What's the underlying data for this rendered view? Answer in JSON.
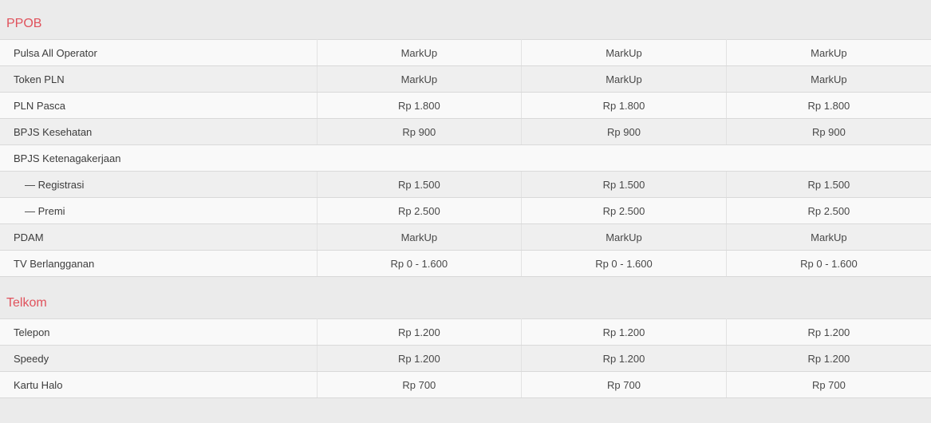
{
  "theme": {
    "page_bg": "#ebebeb",
    "row_light": "#f9f9f9",
    "row_dark": "#efefef",
    "border_h": "#d9d9d9",
    "border_v": "#e2e2e2",
    "accent": "#e0525c",
    "label_text": "#3c3c3c",
    "value_text": "#484848"
  },
  "sections": [
    {
      "title": "PPOB",
      "rows": [
        {
          "label": "Pulsa All Operator",
          "indent": false,
          "full_span": false,
          "values": [
            "MarkUp",
            "MarkUp",
            "MarkUp"
          ]
        },
        {
          "label": "Token PLN",
          "indent": false,
          "full_span": false,
          "values": [
            "MarkUp",
            "MarkUp",
            "MarkUp"
          ]
        },
        {
          "label": "PLN Pasca",
          "indent": false,
          "full_span": false,
          "values": [
            "Rp 1.800",
            "Rp 1.800",
            "Rp 1.800"
          ]
        },
        {
          "label": "BPJS Kesehatan",
          "indent": false,
          "full_span": false,
          "values": [
            "Rp 900",
            "Rp 900",
            "Rp 900"
          ]
        },
        {
          "label": "BPJS Ketenagakerjaan",
          "indent": false,
          "full_span": true,
          "values": []
        },
        {
          "label": "— Registrasi",
          "indent": true,
          "full_span": false,
          "values": [
            "Rp 1.500",
            "Rp 1.500",
            "Rp 1.500"
          ]
        },
        {
          "label": "— Premi",
          "indent": true,
          "full_span": false,
          "values": [
            "Rp 2.500",
            "Rp 2.500",
            "Rp 2.500"
          ]
        },
        {
          "label": "PDAM",
          "indent": false,
          "full_span": false,
          "values": [
            "MarkUp",
            "MarkUp",
            "MarkUp"
          ]
        },
        {
          "label": "TV Berlangganan",
          "indent": false,
          "full_span": false,
          "values": [
            "Rp 0 - 1.600",
            "Rp 0 - 1.600",
            "Rp 0 - 1.600"
          ]
        }
      ]
    },
    {
      "title": "Telkom",
      "rows": [
        {
          "label": "Telepon",
          "indent": false,
          "full_span": false,
          "values": [
            "Rp 1.200",
            "Rp 1.200",
            "Rp 1.200"
          ]
        },
        {
          "label": "Speedy",
          "indent": false,
          "full_span": false,
          "values": [
            "Rp 1.200",
            "Rp 1.200",
            "Rp 1.200"
          ]
        },
        {
          "label": "Kartu Halo",
          "indent": false,
          "full_span": false,
          "values": [
            "Rp 700",
            "Rp 700",
            "Rp 700"
          ]
        }
      ]
    }
  ]
}
